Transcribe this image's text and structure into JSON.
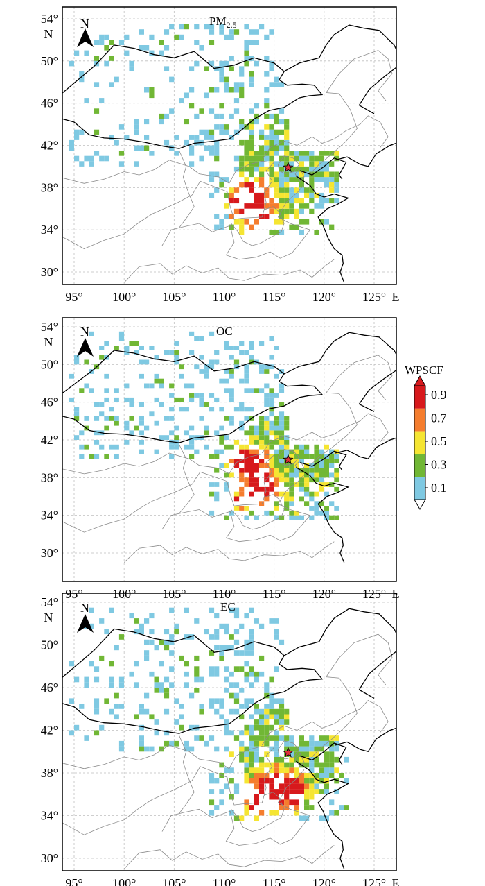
{
  "axes": {
    "lat_ticks": [
      "54°",
      "50°",
      "46°",
      "42°",
      "38°",
      "34°",
      "30°"
    ],
    "lat_values": [
      54,
      50,
      46,
      42,
      38,
      34,
      30
    ],
    "lat_hemisphere": "N",
    "lon_ticks": [
      "95°",
      "100°",
      "105°",
      "110°",
      "115°",
      "120°",
      "125°"
    ],
    "lon_values": [
      95,
      100,
      105,
      110,
      115,
      120,
      125
    ],
    "lon_hemisphere": "E",
    "lon_range": [
      93.5,
      127.5
    ],
    "lat_range": [
      28.8,
      55.2
    ],
    "gridlines": "dashed"
  },
  "north_arrow": {
    "label": "N"
  },
  "site_marker": {
    "lon": 116.4,
    "lat": 39.9,
    "icon": "star-icon"
  },
  "panels": [
    {
      "id": "pm25",
      "title_main": "PM",
      "title_sub": "2.5"
    },
    {
      "id": "oc",
      "title_main": "OC",
      "title_sub": ""
    },
    {
      "id": "ec",
      "title_main": "EC",
      "title_sub": ""
    }
  ],
  "legend": {
    "title": "WPSCF",
    "labels": [
      "0.9",
      "0.7",
      "0.5",
      "0.3",
      "0.1"
    ],
    "colors": [
      "#d7191c",
      "#f57d2e",
      "#f5e532",
      "#71b735",
      "#7fc9e2"
    ]
  },
  "colors": {
    "grid": "#bfbfbf",
    "country_border": "#000000",
    "province_border": "#8a8a8a",
    "marker_fill": "#e0303a"
  }
}
